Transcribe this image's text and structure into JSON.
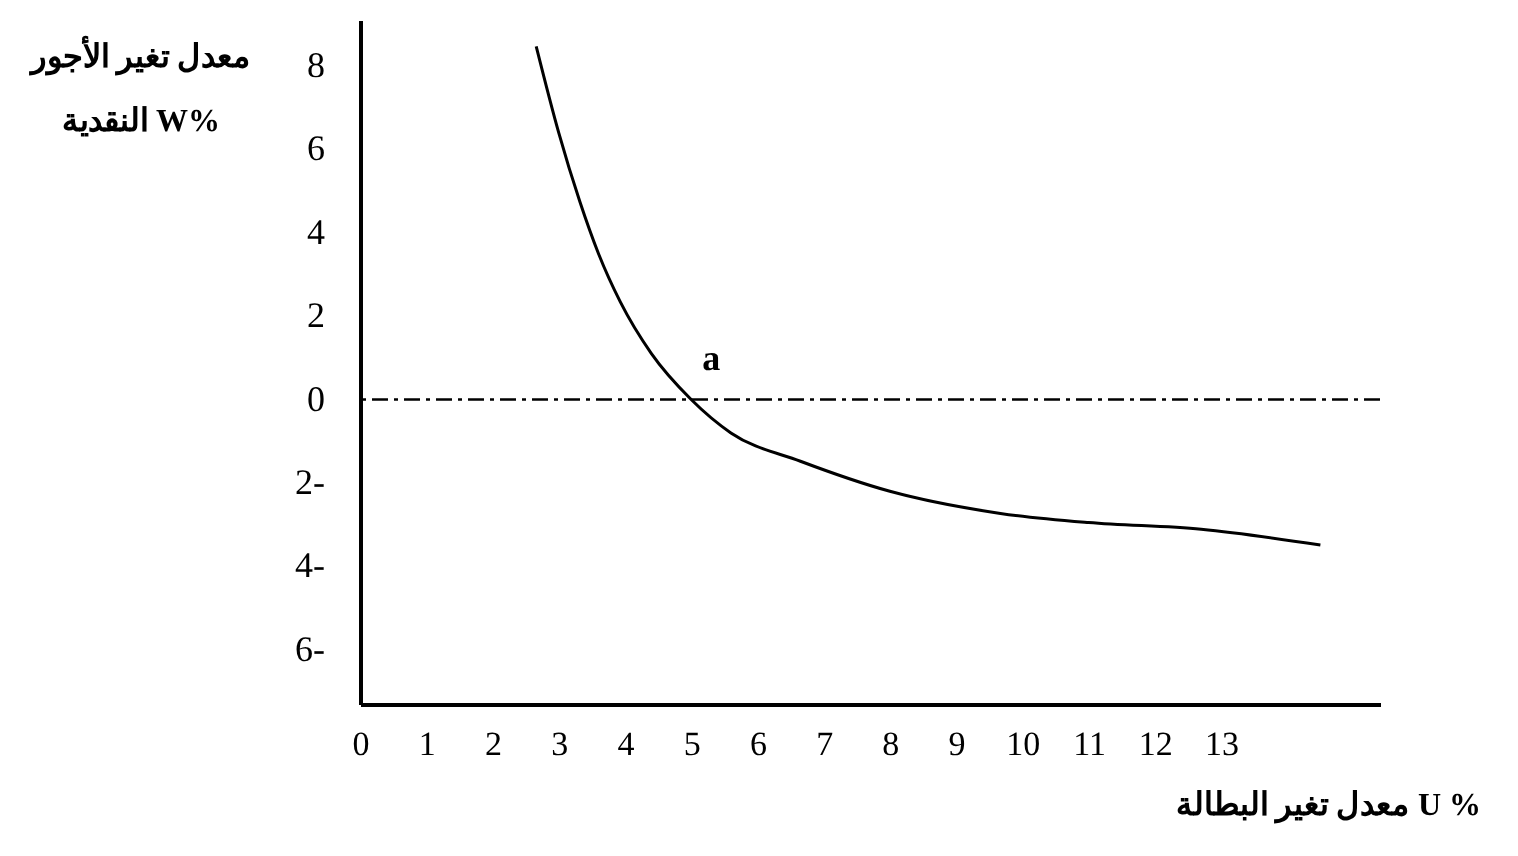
{
  "chart_data": {
    "type": "line",
    "xlabel": "معدل تغير البطالة U %",
    "ylabel": "معدل تغير الأجور\nالنقدية  W%",
    "series": [
      {
        "color": "#000000",
        "x": [
          2.66,
          3.0,
          3.32,
          3.6,
          3.93,
          4.4,
          5.0,
          5.6,
          6.65,
          8.0,
          9.67,
          11.0,
          12.7,
          14.5
        ],
        "values": [
          8.47,
          6.4,
          4.74,
          3.5,
          2.34,
          1.1,
          0,
          -0.8,
          -1.48,
          -2.2,
          -2.73,
          -2.95,
          -3.11,
          -3.49
        ]
      }
    ],
    "xlim": [
      0,
      15.4
    ],
    "ylim": [
      -7.3,
      9.1
    ],
    "xticks": [
      0,
      1,
      2,
      3,
      4,
      5,
      6,
      7,
      8,
      9,
      10,
      11,
      12,
      13
    ],
    "yticks": [
      {
        "value": -6,
        "label": "6-"
      },
      {
        "value": -4,
        "label": "4-"
      },
      {
        "value": -2,
        "label": "2-"
      },
      0,
      2,
      4,
      6,
      8
    ],
    "ref_lines": [
      {
        "axis": "y",
        "value": 0,
        "line_style": "dashdot",
        "color": "#000000"
      }
    ],
    "annotations": [
      {
        "text": "a",
        "x": 5,
        "y": 0
      }
    ],
    "grid": false,
    "marker": "none",
    "line_style": "solid"
  }
}
